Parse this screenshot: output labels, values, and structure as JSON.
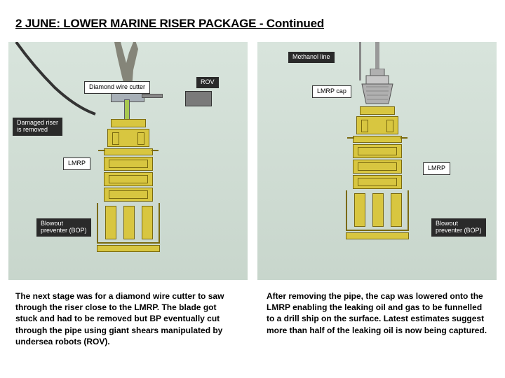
{
  "title": "2 JUNE: LOWER MARINE RISER PACKAGE  -  Continued",
  "left": {
    "labels": {
      "damaged_riser": "Damaged riser\nis removed",
      "cutter": "Diamond wire cutter",
      "rov": "ROV",
      "lmrp": "LMRP",
      "bop": "Blowout\npreventer (BOP)"
    },
    "caption": "The next stage was for a diamond wire cutter to saw through the riser close to the LMRP. The blade got stuck and had to be removed but BP eventually cut through the pipe using giant shears manipulated by undersea robots (ROV)."
  },
  "right": {
    "labels": {
      "methanol": "Methanol line",
      "cap": "LMRP cap",
      "lmrp": "LMRP",
      "bop": "Blowout\npreventer (BOP)"
    },
    "caption": "After removing the pipe, the cap was lowered onto the LMRP enabling the leaking oil and gas to be funnelled to a drill ship on the surface. Latest estimates suggest more than half of the leaking oil is now being captured."
  },
  "colors": {
    "bop": "#d8c640",
    "bop_dark": "#7a6a10",
    "bg_top": "#d8e4dc",
    "bg_bot": "#c8d6cc",
    "label_bg": "#2a2a2a"
  }
}
